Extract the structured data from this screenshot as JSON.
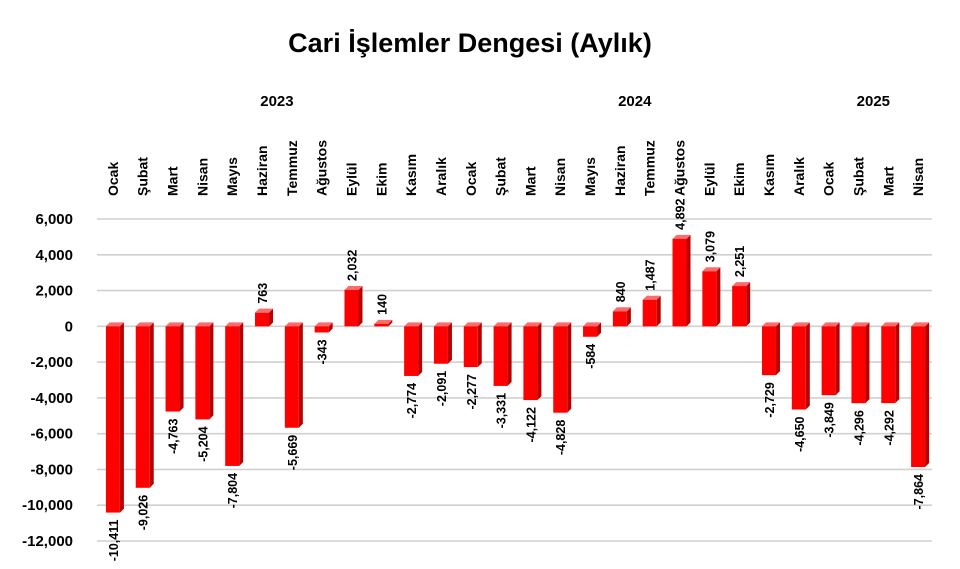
{
  "chart_data": {
    "type": "bar",
    "title": "Cari İşlemler Dengesi (Aylık)",
    "years": [
      {
        "label": "2023",
        "start": 0,
        "end": 11
      },
      {
        "label": "2024",
        "start": 12,
        "end": 23
      },
      {
        "label": "2025",
        "start": 24,
        "end": 27
      }
    ],
    "categories": [
      "Ocak",
      "Şubat",
      "Mart",
      "Nisan",
      "Mayıs",
      "Haziran",
      "Temmuz",
      "Ağustos",
      "Eylül",
      "Ekim",
      "Kasım",
      "Aralık",
      "Ocak",
      "Şubat",
      "Mart",
      "Nisan",
      "Mayıs",
      "Haziran",
      "Temmuz",
      "Ağustos",
      "Eylül",
      "Ekim",
      "Kasım",
      "Aralık",
      "Ocak",
      "Şubat",
      "Mart",
      "Nisan"
    ],
    "values": [
      -10411,
      -9026,
      -4763,
      -5204,
      -7804,
      763,
      -5669,
      -343,
      2032,
      140,
      -2774,
      -2091,
      -2277,
      -3331,
      -4122,
      -4828,
      -584,
      840,
      1487,
      4892,
      3079,
      2251,
      -2729,
      -4650,
      -3849,
      -4296,
      -4292,
      -7864
    ],
    "value_labels": [
      "-10,411",
      "-9,026",
      "-4,763",
      "-5,204",
      "-7,804",
      "763",
      "-5,669",
      "-343",
      "2,032",
      "140",
      "-2,774",
      "-2,091",
      "-2,277",
      "-3,331",
      "-4,122",
      "-4,828",
      "-584",
      "840",
      "1,487",
      "4,892",
      "3,079",
      "2,251",
      "-2,729",
      "-4,650",
      "-3,849",
      "-4,296",
      "-4,292",
      "-7,864"
    ],
    "yticks": [
      6000,
      4000,
      2000,
      0,
      -2000,
      -4000,
      -6000,
      -8000,
      -10000,
      -12000
    ],
    "ytick_labels": [
      "6,000",
      "4,000",
      "2,000",
      "0",
      "-2,000",
      "-4,000",
      "-6,000",
      "-8,000",
      "-10,000",
      "-12,000"
    ],
    "ylim": [
      -12000,
      6000
    ],
    "grid": true,
    "legend": "none",
    "bar_color": "#ff0000",
    "bar_side_color": "#b80000",
    "bar_top_color": "#ff6a6a"
  }
}
